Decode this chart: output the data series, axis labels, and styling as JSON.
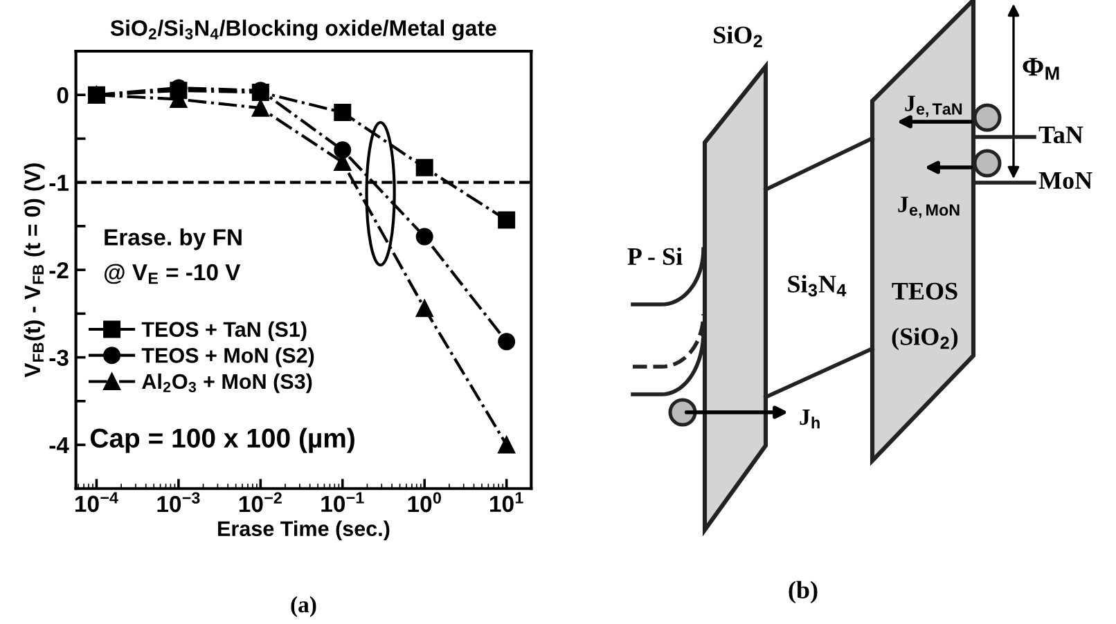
{
  "chart_data": [
    {
      "type": "line",
      "title": "SiO$_{2}$/Si$_{3}$N$_{4}$/Blocking oxide/Metal gate",
      "xlabel": "Erase Time (sec.)",
      "ylabel": "V$_{FB}$(t) - V$_{FB}$ (t = 0) (V)",
      "log": "x",
      "x": [
        0.0001,
        0.001,
        0.01,
        0.1,
        1,
        10
      ],
      "series": [
        {
          "name": "TEOS + TaN (S1)",
          "color": "#000000",
          "marker": "square",
          "values": [
            0,
            0.05,
            0.03,
            -0.2,
            -0.83,
            -1.43
          ]
        },
        {
          "name": "TEOS + MoN (S2)",
          "color": "#000000",
          "marker": "circle",
          "values": [
            0,
            0.08,
            0.05,
            -0.63,
            -1.62,
            -2.82
          ]
        },
        {
          "name": "Al$_{2}$O$_{3}$ + MoN (S3)",
          "color": "#000000",
          "marker": "triangle",
          "values": [
            0,
            -0.05,
            -0.15,
            -0.77,
            -2.44,
            -4.0
          ]
        }
      ],
      "line_style": "dashdot",
      "xlim": [
        5.6e-05,
        20
      ],
      "ylim": [
        -4.5,
        0.5
      ],
      "xticks": [
        {
          "value": 0.0001,
          "label": "10$^{−4}$"
        },
        {
          "value": 0.001,
          "label": "10$^{−3}$"
        },
        {
          "value": 0.01,
          "label": "10$^{−2}$"
        },
        {
          "value": 0.1,
          "label": "10$^{−1}$"
        },
        {
          "value": 1,
          "label": "10$^{0}$"
        },
        {
          "value": 10,
          "label": "10$^{1}$"
        }
      ],
      "yticks": [
        0,
        {
          "value": -0.5,
          "label": null
        },
        -1,
        {
          "value": -1.5,
          "label": null
        },
        -2,
        {
          "value": -2.5,
          "label": null
        },
        -3,
        {
          "value": -3.5,
          "label": null
        },
        -4
      ],
      "ref_lines": [
        {
          "axis": "y",
          "value": -1,
          "line_style": "dashed",
          "color": "#000000"
        }
      ],
      "legend": "left",
      "grid": false,
      "annotations": [
        "Erase. by FN",
        "@ V$_{E}$ = -10 V",
        "Cap = 100 x 100 (µm)",
        "(a)"
      ]
    },
    {
      "type": "other",
      "annotations": [
        "SiO$_{2}$",
        "P - Si",
        "Si$_{3}$N$_{4}$",
        "TEOS",
        "(SiO$_{2}$)",
        "J$_{e,TaN}$",
        "J$_{e,MoN}$",
        "TaN",
        "MoN",
        "Φ$_{M}$",
        "J$_{h}$",
        "(b)"
      ]
    }
  ]
}
